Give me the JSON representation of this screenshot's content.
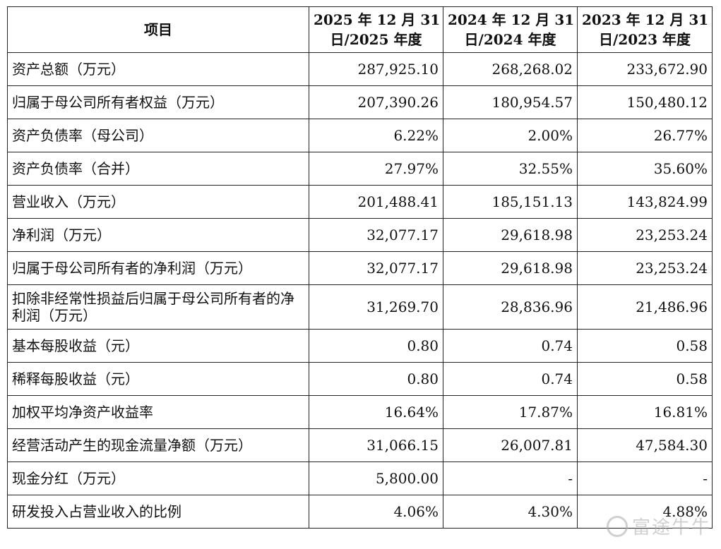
{
  "table": {
    "header": {
      "item": "项目",
      "col1": [
        "2025 年 12 月 31",
        "日/2025 年度"
      ],
      "col2": [
        "2024 年 12 月 31",
        "日/2024 年度"
      ],
      "col3": [
        "2023 年 12 月 31",
        "日/2023 年度"
      ]
    },
    "rows": [
      {
        "label": "资产总额（万元）",
        "v2025": "287,925.10",
        "v2024": "268,268.02",
        "v2023": "233,672.90"
      },
      {
        "label": "归属于母公司所有者权益（万元）",
        "v2025": "207,390.26",
        "v2024": "180,954.57",
        "v2023": "150,480.12"
      },
      {
        "label": "资产负债率（母公司）",
        "v2025": "6.22%",
        "v2024": "2.00%",
        "v2023": "26.77%"
      },
      {
        "label": "资产负债率（合并）",
        "v2025": "27.97%",
        "v2024": "32.55%",
        "v2023": "35.60%"
      },
      {
        "label": "营业收入（万元）",
        "v2025": "201,488.41",
        "v2024": "185,151.13",
        "v2023": "143,824.99"
      },
      {
        "label": "净利润（万元）",
        "v2025": "32,077.17",
        "v2024": "29,618.98",
        "v2023": "23,253.24"
      },
      {
        "label": "归属于母公司所有者的净利润（万元）",
        "v2025": "32,077.17",
        "v2024": "29,618.98",
        "v2023": "23,253.24"
      },
      {
        "label": "扣除非经常性损益后归属于母公司所有者的净利润（万元）",
        "v2025": "31,269.70",
        "v2024": "28,836.96",
        "v2023": "21,486.96"
      },
      {
        "label": "基本每股收益（元）",
        "v2025": "0.80",
        "v2024": "0.74",
        "v2023": "0.58"
      },
      {
        "label": "稀释每股收益（元）",
        "v2025": "0.80",
        "v2024": "0.74",
        "v2023": "0.58"
      },
      {
        "label": "加权平均净资产收益率",
        "v2025": "16.64%",
        "v2024": "17.87%",
        "v2023": "16.81%"
      },
      {
        "label": "经营活动产生的现金流量净额（万元）",
        "v2025": "31,066.15",
        "v2024": "26,007.81",
        "v2023": "47,584.30"
      },
      {
        "label": "现金分红（万元）",
        "v2025": "5,800.00",
        "v2024": "-",
        "v2023": "-"
      },
      {
        "label": "研发投入占营业收入的比例",
        "v2025": "4.06%",
        "v2024": "4.30%",
        "v2023": "4.88%"
      }
    ]
  },
  "watermark": {
    "text": "富途牛牛",
    "icon": "futu-logo-icon"
  }
}
